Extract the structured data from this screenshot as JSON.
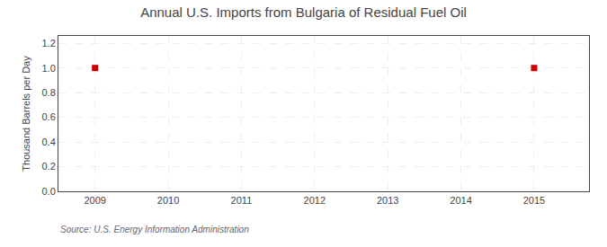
{
  "chart_data": {
    "type": "scatter",
    "title": "Annual U.S. Imports from Bulgaria of Residual Fuel Oil",
    "ylabel": "Thousand Barrels per Day",
    "source": "Source: U.S. Energy Information Administration",
    "x": [
      2009,
      2015
    ],
    "values": [
      1.0,
      1.0
    ],
    "color": "#cc0000",
    "marker": "square",
    "xlim": [
      2008.5,
      2015.75
    ],
    "ylim": [
      0.0,
      1.26
    ],
    "xticks": [
      2009,
      2010,
      2011,
      2012,
      2013,
      2014,
      2015
    ],
    "yticks": [
      {
        "value": 0.0,
        "label": "0.0"
      },
      0.2,
      0.4,
      0.6,
      0.8,
      {
        "value": 1.0,
        "label": "1.0"
      },
      1.2
    ],
    "grid": true
  }
}
